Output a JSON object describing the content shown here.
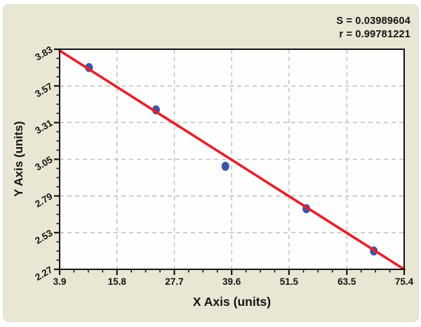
{
  "stats": {
    "s": "S = 0.03989604",
    "r": "r = 0.99781221"
  },
  "chart_data": {
    "type": "scatter",
    "title": "",
    "xlabel": "X Axis (units)",
    "ylabel": "Y Axis (units)",
    "xlim": [
      3.9,
      75.4
    ],
    "ylim": [
      2.27,
      3.83
    ],
    "x_ticks": [
      3.9,
      15.8,
      27.7,
      39.6,
      51.5,
      63.5,
      75.4
    ],
    "y_ticks": [
      2.27,
      2.53,
      2.79,
      3.05,
      3.31,
      3.57,
      3.83
    ],
    "minor_ticks_per_interval": 3,
    "grid": "dashed",
    "legend": "none",
    "annotations": [
      "S = 0.03989604",
      "r = 0.99781221"
    ],
    "points": [
      {
        "x": 10.0,
        "y": 3.7
      },
      {
        "x": 23.9,
        "y": 3.4
      },
      {
        "x": 38.3,
        "y": 3.0
      },
      {
        "x": 55.1,
        "y": 2.7
      },
      {
        "x": 69.1,
        "y": 2.4
      }
    ],
    "fit_line": {
      "x1": 3.9,
      "y1": 3.82,
      "x2": 75.4,
      "y2": 2.27
    },
    "colors": {
      "page_bg": "#e9e6d3",
      "plot_bg": "#fefefe",
      "axis": "#141414",
      "grid": "#b9b9b9",
      "fit_line": "#ea1f26",
      "point": "#3b55a8"
    }
  }
}
